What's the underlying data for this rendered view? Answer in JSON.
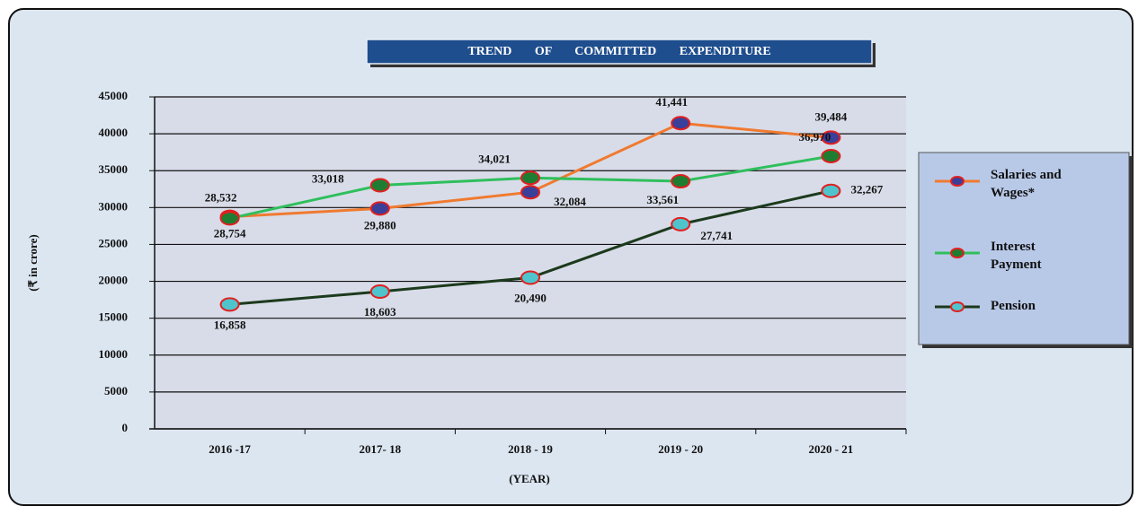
{
  "chart_data": {
    "type": "line",
    "title": "TREND OF COMMITTED EXPENDITURE",
    "xlabel": "(YEAR)",
    "ylabel": "(₹ in crore)",
    "categories": [
      "2016 -17",
      "2017- 18",
      "2018 - 19",
      "2019 - 20",
      "2020 - 21"
    ],
    "series": [
      {
        "name": "Salaries and Wages*",
        "color": "#f07a30",
        "marker_color": "#3a3f9a",
        "values": [
          28754,
          29880,
          32084,
          41441,
          39484
        ],
        "value_labels": [
          "28,754",
          "29,880",
          "32,084",
          "41,441",
          "39,484"
        ]
      },
      {
        "name": "Interest Payment",
        "color": "#2fbf5c",
        "marker_color": "#1f7d32",
        "values": [
          28532,
          33018,
          34021,
          33561,
          36970
        ],
        "value_labels": [
          "28,532",
          "33,018",
          "34,021",
          "33,561",
          "36,970"
        ]
      },
      {
        "name": "Pension",
        "color": "#1c3a1c",
        "marker_color": "#4fc4cc",
        "values": [
          16858,
          18603,
          20490,
          27741,
          32267
        ],
        "value_labels": [
          "16,858",
          "18,603",
          "20,490",
          "27,741",
          "32,267"
        ]
      }
    ],
    "ylim": [
      0,
      45000
    ],
    "yticks": [
      0,
      5000,
      10000,
      15000,
      20000,
      25000,
      30000,
      35000,
      40000,
      45000
    ],
    "grid": true,
    "legend": "right"
  }
}
